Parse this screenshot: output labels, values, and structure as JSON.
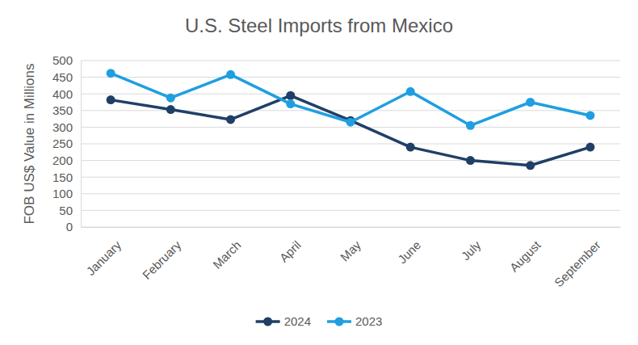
{
  "chart_data": {
    "type": "line",
    "title": "U.S. Steel Imports from Mexico",
    "y_label": "FOB US$ Value in Millions",
    "categories": [
      "January",
      "February",
      "March",
      "April",
      "May",
      "June",
      "July",
      "August",
      "September"
    ],
    "series": [
      {
        "name": "2024",
        "color": "#1f3f66",
        "marker": "circle",
        "line_style": "solid",
        "values": [
          382,
          353,
          323,
          395,
          320,
          240,
          200,
          185,
          240
        ]
      },
      {
        "name": "2023",
        "color": "#1f9fe0",
        "marker": "circle",
        "line_style": "solid",
        "values": [
          462,
          388,
          458,
          370,
          315,
          407,
          305,
          375,
          335
        ]
      }
    ],
    "ylim": [
      0,
      500
    ],
    "yticks": [
      0,
      50,
      100,
      150,
      200,
      250,
      300,
      350,
      400,
      450,
      500
    ],
    "grid": true,
    "legend": "bottom"
  }
}
